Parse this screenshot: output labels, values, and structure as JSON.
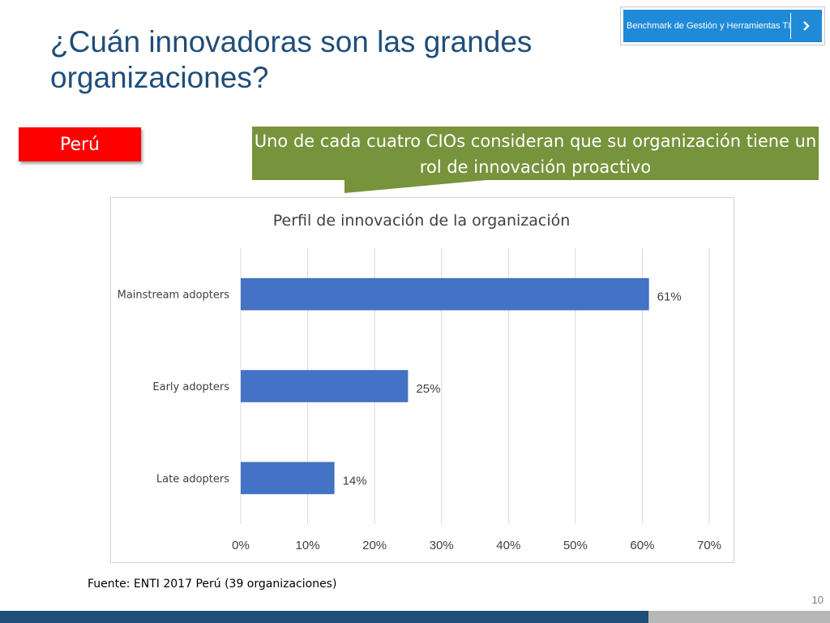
{
  "slide": {
    "title": "¿Cuán innovadoras son las grandes organizaciones?",
    "badge_label": "Benchmark de Gestión y Herramientas TI",
    "country_label": "Perú",
    "callout_text": "Uno de cada cuatro CIOs consideran que su organización tiene un rol de innovación proactivo",
    "source": "Fuente: ENTI 2017 Perú (39 organizaciones)",
    "page_number": "10"
  },
  "colors": {
    "title": "#1f4e79",
    "badge": "#1f8ad8",
    "country": "#ff0000",
    "callout": "#77933c",
    "bar": "#4472c4"
  },
  "icons": {
    "badge_arrow": "chevron-right-icon"
  },
  "chart_data": {
    "type": "bar",
    "orientation": "horizontal",
    "title": "Perfil de innovación de la organización",
    "categories": [
      "Mainstream adopters",
      "Early adopters",
      "Late adopters"
    ],
    "values": [
      61,
      25,
      14
    ],
    "value_labels": [
      "61%",
      "25%",
      "14%"
    ],
    "xlim": [
      0,
      70
    ],
    "xticks": [
      "0%",
      "10%",
      "20%",
      "30%",
      "40%",
      "50%",
      "60%",
      "70%"
    ],
    "grid": true,
    "legend": "none"
  }
}
